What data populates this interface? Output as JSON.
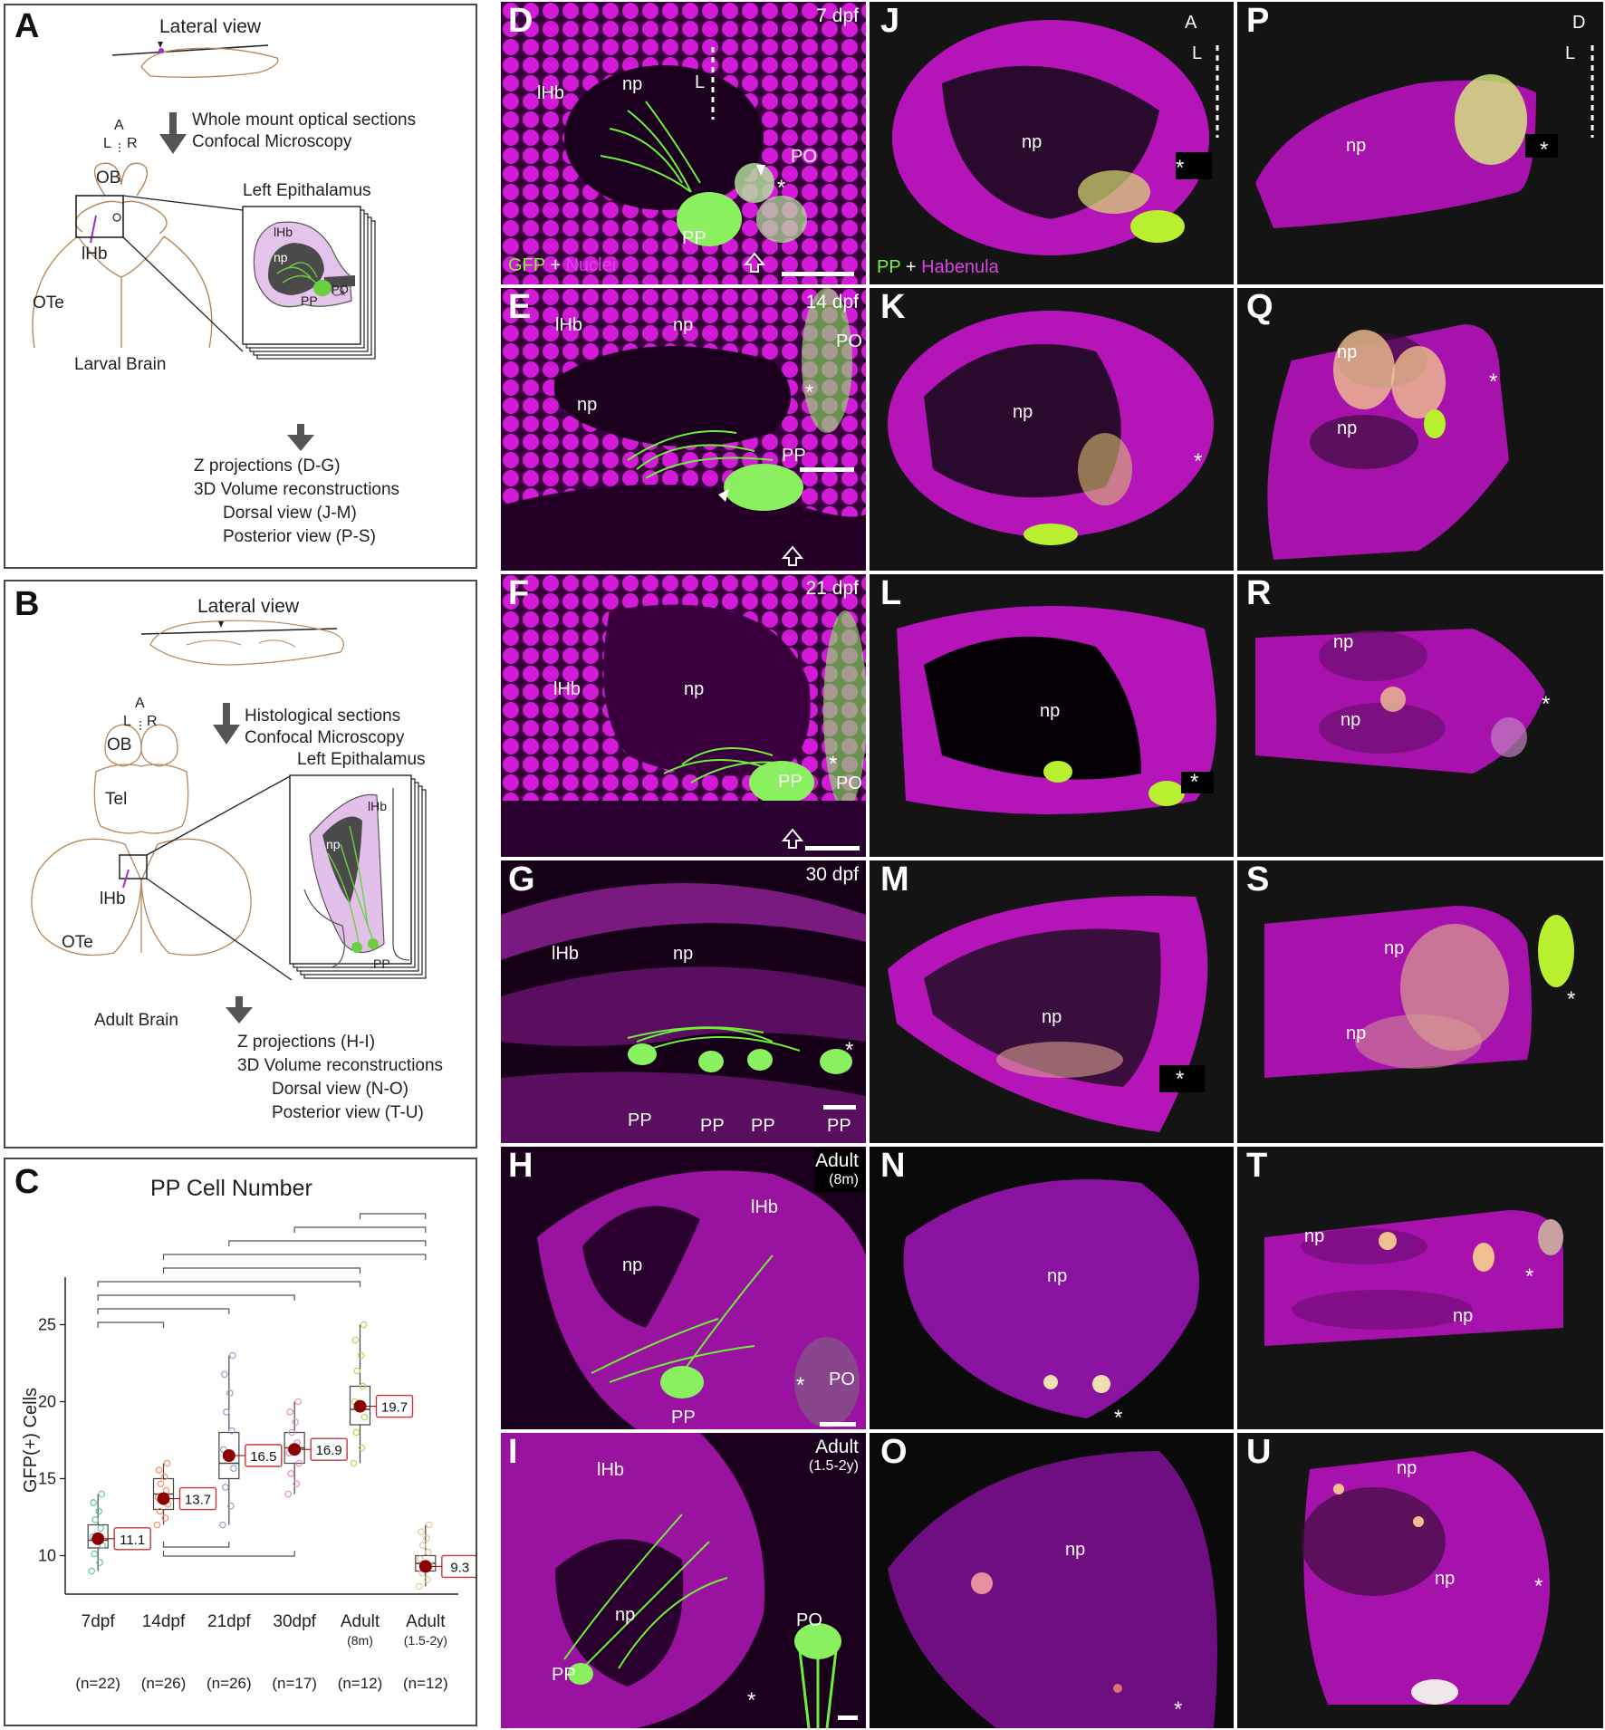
{
  "panels": {
    "A": {
      "letter": "A",
      "lateral_view": "Lateral view",
      "step1_line1": "Whole mount optical sections",
      "step1_line2": "Confocal Microscopy",
      "axis_A": "A",
      "axis_L": "L",
      "axis_R": "R",
      "OB": "OB",
      "lHb": "lHb",
      "OTe": "OTe",
      "brain_caption": "Larval Brain",
      "inset_title": "Left Epithalamus",
      "inset_lHb": "lHb",
      "inset_np": "np",
      "inset_PP": "PP",
      "inset_PO": "PO",
      "inset_star": "*",
      "out1": "Z projections (D-G)",
      "out2": "3D Volume reconstructions",
      "out3": "Dorsal view (J-M)",
      "out4": "Posterior view (P-S)"
    },
    "B": {
      "letter": "B",
      "lateral_view": "Lateral view",
      "step1_line1": "Histological sections",
      "step1_line2": "Confocal Microscopy",
      "axis_A": "A",
      "axis_L": "L",
      "axis_R": "R",
      "OB": "OB",
      "Tel": "Tel",
      "lHb": "lHb",
      "OTe": "OTe",
      "brain_caption": "Adult Brain",
      "inset_title": "Left Epithalamus",
      "inset_lHb": "lHb",
      "inset_np": "np",
      "inset_PP": "PP",
      "out1": "Z projections (H-I)",
      "out2": "3D Volume reconstructions",
      "out3": "Dorsal view (N-O)",
      "out4": "Posterior view (T-U)"
    },
    "C": {
      "letter": "C",
      "n_labels": [
        "(n=22)",
        "(n=26)",
        "(n=26)",
        "(n=17)",
        "(n=12)",
        "(n=12)"
      ],
      "cat_sub": [
        "",
        "",
        "",
        "",
        "(8m)",
        "(1.5-2y)"
      ]
    },
    "D": {
      "letter": "D",
      "stage": "7 dpf",
      "legend_a": "GFP",
      "legend_plus": " + ",
      "legend_b": "Nuclei",
      "orient": "L"
    },
    "E": {
      "letter": "E",
      "stage": "14 dpf"
    },
    "F": {
      "letter": "F",
      "stage": "21 dpf"
    },
    "G": {
      "letter": "G",
      "stage": "30 dpf"
    },
    "H": {
      "letter": "H",
      "stage": "Adult",
      "stage_sub": "(8m)"
    },
    "I": {
      "letter": "I",
      "stage": "Adult",
      "stage_sub": "(1.5-2y)"
    },
    "J": {
      "letter": "J",
      "legend_a": "PP",
      "legend_plus": " + ",
      "legend_b": "Habenula",
      "orient_top": "A",
      "orient": "L"
    },
    "K": {
      "letter": "K"
    },
    "L": {
      "letter": "L"
    },
    "M": {
      "letter": "M"
    },
    "N": {
      "letter": "N"
    },
    "O": {
      "letter": "O"
    },
    "P": {
      "letter": "P",
      "orient_top": "D",
      "orient": "L"
    },
    "Q": {
      "letter": "Q"
    },
    "R": {
      "letter": "R"
    },
    "S": {
      "letter": "S"
    },
    "T": {
      "letter": "T"
    },
    "U": {
      "letter": "U"
    },
    "labels": {
      "lHb": "lHb",
      "np": "np",
      "PP": "PP",
      "PO": "PO",
      "star": "*"
    }
  },
  "colors": {
    "magenta": "#c410c8",
    "green": "#7df03a",
    "panel_bg": "#120012",
    "box_red": "#c9333b",
    "mean_dot": "#8b0000"
  },
  "chart_data": {
    "type": "box",
    "title": "PP Cell Number",
    "ylabel": "GFP(+) Cells",
    "xlabel": "",
    "categories": [
      "7dpf",
      "14dpf",
      "21dpf",
      "30dpf",
      "Adult",
      "Adult"
    ],
    "means": [
      11.1,
      13.7,
      16.5,
      16.9,
      19.7,
      9.3
    ],
    "medians": [
      11.0,
      14.0,
      16.0,
      17.0,
      19.5,
      9.5
    ],
    "q1": [
      10.5,
      13.0,
      15.0,
      16.0,
      18.5,
      9.0
    ],
    "q3": [
      12.0,
      15.0,
      18.0,
      18.0,
      21.0,
      10.0
    ],
    "whisker_low": [
      9,
      12,
      12,
      14,
      16,
      8
    ],
    "whisker_high": [
      14,
      16,
      23,
      20,
      25,
      12
    ],
    "mean_labels": [
      "11.1",
      "13.7",
      "16.5",
      "16.9",
      "19.7",
      "9.3"
    ],
    "ylim": [
      7.5,
      27.5
    ],
    "yticks": [
      10,
      15,
      20,
      25
    ],
    "significance_brackets": [
      [
        4,
        5
      ],
      [
        3,
        5
      ],
      [
        2,
        5
      ],
      [
        1,
        5
      ],
      [
        1,
        4
      ],
      [
        0,
        4
      ],
      [
        0,
        3
      ],
      [
        0,
        2
      ],
      [
        0,
        1
      ],
      [
        1,
        2
      ],
      [
        1,
        3
      ]
    ],
    "point_colors": [
      "#66c2a5",
      "#fc8d62",
      "#8da0cb",
      "#e78ac3",
      "#a6d854",
      "#e5c494"
    ]
  }
}
